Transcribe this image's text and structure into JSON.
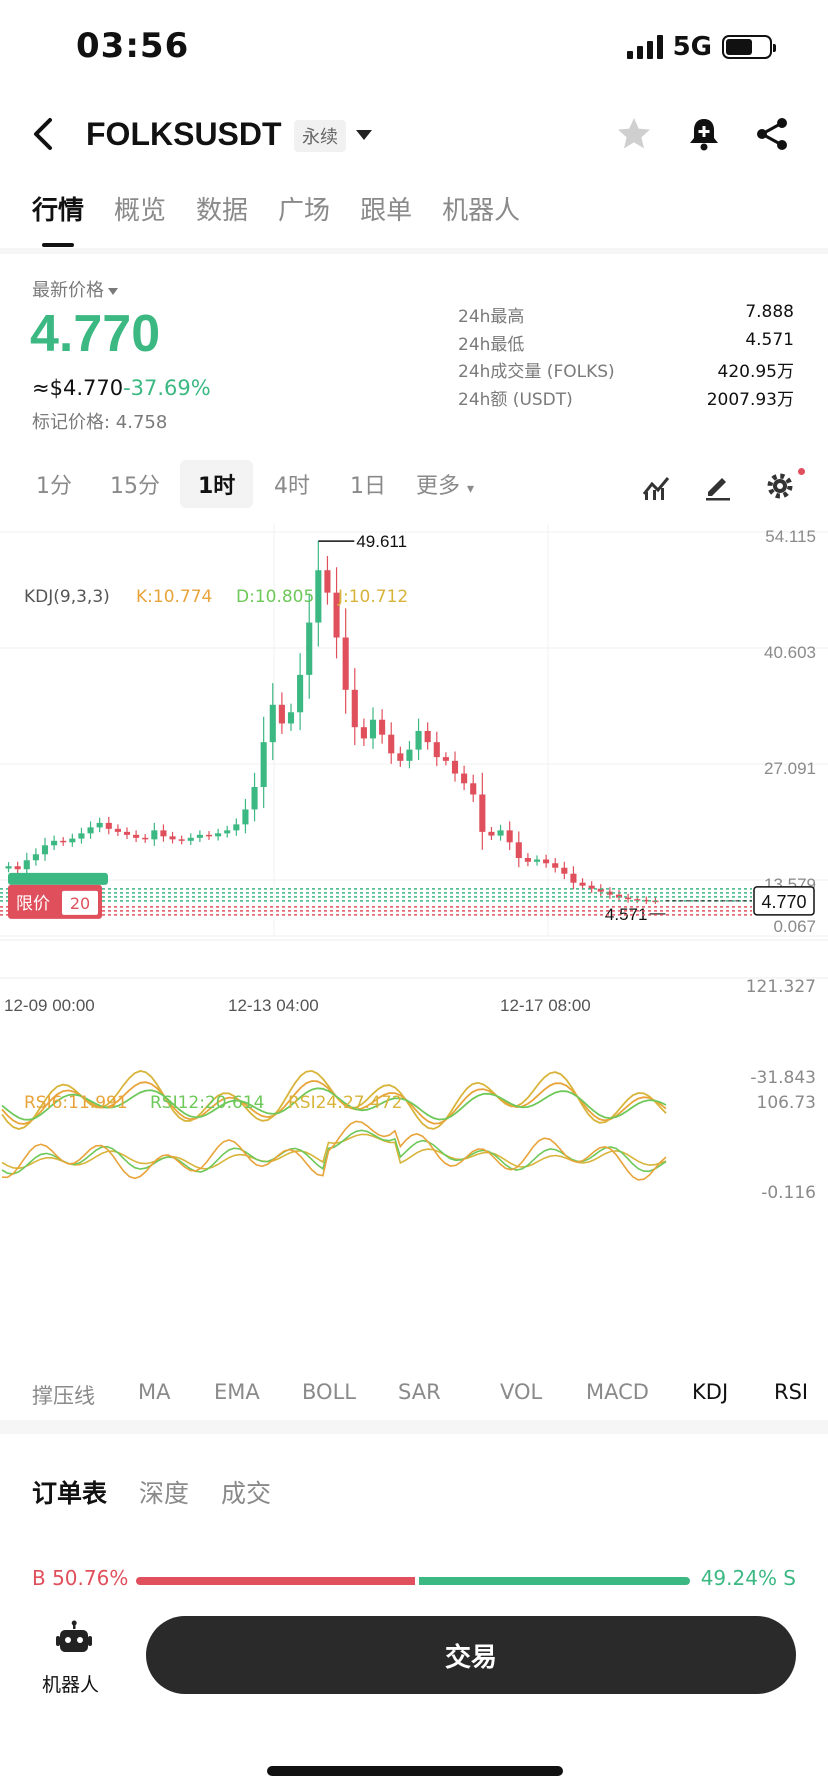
{
  "status": {
    "time": "03:56",
    "network": "5G"
  },
  "header": {
    "symbol": "FOLKSUSDT",
    "badge": "永续"
  },
  "tabs": [
    "行情",
    "概览",
    "数据",
    "广场",
    "跟单",
    "机器人"
  ],
  "price": {
    "label": "最新价格",
    "last": "4.770",
    "usd": "≈$4.770",
    "change": "-37.69%",
    "mark": "标记价格: 4.758"
  },
  "stats": [
    {
      "k": "24h最高",
      "v": "7.888"
    },
    {
      "k": "24h最低",
      "v": "4.571"
    },
    {
      "k": "24h成交量 (FOLKS)",
      "v": "420.95万"
    },
    {
      "k": "24h额 (USDT)",
      "v": "2007.93万"
    }
  ],
  "intervals": [
    "1分",
    "15分",
    "1时",
    "4时",
    "1日",
    "更多"
  ],
  "active_interval": "1时",
  "chart_data": {
    "type": "candlestick",
    "y_axis": [
      "54.115",
      "40.603",
      "27.091",
      "13.579",
      "0.067"
    ],
    "ylim": [
      0.067,
      54.115
    ],
    "x_ticks": [
      "12-09 00:00",
      "12-13 04:00",
      "12-17 08:00"
    ],
    "high_label": "49.611",
    "low_label": "4.571",
    "current_price_tag": "4.770",
    "close_series": [
      9.4,
      9.0,
      10.2,
      11.0,
      12.2,
      12.8,
      12.6,
      13.1,
      13.8,
      14.6,
      15.2,
      14.4,
      14.0,
      13.6,
      13.2,
      13.0,
      14.2,
      13.4,
      13.0,
      12.8,
      13.2,
      13.6,
      13.4,
      13.8,
      14.2,
      15.0,
      17.0,
      20.0,
      26.0,
      31.0,
      28.5,
      30.0,
      35.0,
      42.0,
      49.0,
      46.0,
      40.0,
      33.0,
      28.0,
      26.5,
      29.0,
      27.0,
      24.5,
      23.5,
      25.0,
      27.5,
      26.0,
      24.0,
      23.5,
      21.8,
      20.5,
      19.0,
      14.0,
      13.5,
      14.2,
      12.6,
      10.5,
      10.0,
      10.3,
      9.8,
      9.2,
      8.4,
      7.2,
      6.8,
      6.4,
      6.0,
      5.6,
      5.2,
      5.0,
      4.9,
      4.8,
      4.77
    ],
    "kdj": {
      "label": "KDJ(9,3,3)",
      "K": "K:10.774",
      "D": "D:10.805",
      "J": "J:10.712",
      "max": "121.327",
      "min": "-31.843"
    },
    "rsi": {
      "r6": "RSI6:11.991",
      "r12": "RSI12:20.614",
      "r24": "RSI24:27.472",
      "max": "106.73",
      "min": "-0.116"
    },
    "order_widget": {
      "label": "限价",
      "qty": "20"
    }
  },
  "indicators": [
    "撑压线",
    "MA",
    "EMA",
    "BOLL",
    "SAR",
    "VOL",
    "MACD",
    "KDJ",
    "RSI"
  ],
  "active_indicators": [
    "KDJ",
    "RSI"
  ],
  "book_tabs": [
    "订单表",
    "深度",
    "成交"
  ],
  "ratio": {
    "buy": "B 50.76%",
    "sell": "49.24% S",
    "buy_value": 50.76
  },
  "bottom": {
    "robot_label": "机器人",
    "trade_label": "交易"
  },
  "colors": {
    "up": "#3cb882",
    "down": "#e0505c",
    "k": "#e8a43a",
    "d": "#6ec85a",
    "j": "#d8b43a"
  }
}
